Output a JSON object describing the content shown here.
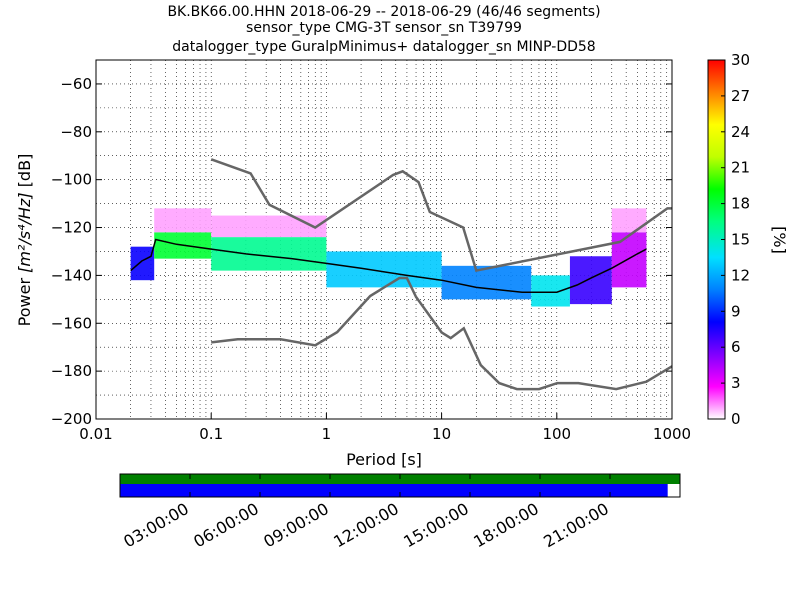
{
  "chart_data": {
    "type": "heatmap",
    "title_lines": [
      "BK.BK66.00.HHN   2018-06-29 -- 2018-06-29  (46/46 segments)",
      "sensor_type CMG-3T sensor_sn T39799",
      "datalogger_type GuralpMinimus+ datalogger_sn MINP-DD58"
    ],
    "xlabel": "Period [s]",
    "ylabel_prefix": "Power ",
    "ylabel_units": "[m²/s⁴/Hz]",
    "ylabel_suffix": " [dB]",
    "x_scale": "log",
    "xlim": [
      0.01,
      1000
    ],
    "ylim": [
      -200,
      -50
    ],
    "x_ticks": [
      {
        "value": 0.01,
        "label": "0.01"
      },
      {
        "value": 0.1,
        "label": "0.1"
      },
      {
        "value": 1,
        "label": "1"
      },
      {
        "value": 10,
        "label": "10"
      },
      {
        "value": 100,
        "label": "100"
      },
      {
        "value": 1000,
        "label": "1000"
      }
    ],
    "y_ticks": [
      {
        "value": -60,
        "label": "−60"
      },
      {
        "value": -80,
        "label": "−80"
      },
      {
        "value": -100,
        "label": "−100"
      },
      {
        "value": -120,
        "label": "−120"
      },
      {
        "value": -140,
        "label": "−140"
      },
      {
        "value": -160,
        "label": "−160"
      },
      {
        "value": -180,
        "label": "−180"
      },
      {
        "value": -200,
        "label": "−200"
      }
    ],
    "grid": "dotted",
    "colorbar": {
      "label": "[%]",
      "range": [
        0,
        30
      ],
      "ticks": [
        {
          "value": 0,
          "label": "0"
        },
        {
          "value": 3,
          "label": "3"
        },
        {
          "value": 6,
          "label": "6"
        },
        {
          "value": 9,
          "label": "9"
        },
        {
          "value": 12,
          "label": "12"
        },
        {
          "value": 15,
          "label": "15"
        },
        {
          "value": 18,
          "label": "18"
        },
        {
          "value": 21,
          "label": "21"
        },
        {
          "value": 24,
          "label": "24"
        },
        {
          "value": 27,
          "label": "27"
        },
        {
          "value": 30,
          "label": "30"
        }
      ],
      "colormap_stops": [
        "#ffffff",
        "#ff00ff",
        "#8000ff",
        "#0000ff",
        "#0080ff",
        "#00e0ff",
        "#00ff80",
        "#00ff00",
        "#c0ff00",
        "#ffff00",
        "#ff8000",
        "#ff0000"
      ]
    },
    "high_noise_model": [
      [
        0.1,
        -91.5
      ],
      [
        0.22,
        -97.4
      ],
      [
        0.32,
        -110.5
      ],
      [
        0.8,
        -120
      ],
      [
        3.8,
        -98
      ],
      [
        4.6,
        -96.5
      ],
      [
        6.3,
        -101
      ],
      [
        7.9,
        -113.5
      ],
      [
        15.4,
        -120
      ],
      [
        20,
        -138
      ],
      [
        354,
        -126
      ],
      [
        912,
        -112
      ],
      [
        1000,
        -112
      ]
    ],
    "low_noise_model": [
      [
        0.1,
        -168
      ],
      [
        0.17,
        -166.7
      ],
      [
        0.4,
        -166.7
      ],
      [
        0.8,
        -169.2
      ],
      [
        1.24,
        -163.7
      ],
      [
        2.4,
        -148.6
      ],
      [
        4.3,
        -141.1
      ],
      [
        5.0,
        -141.1
      ],
      [
        6.0,
        -149
      ],
      [
        10.0,
        -163.8
      ],
      [
        12.0,
        -166.2
      ],
      [
        15.6,
        -162.1
      ],
      [
        21.9,
        -177.5
      ],
      [
        31.6,
        -185
      ],
      [
        45,
        -187.5
      ],
      [
        70,
        -187.5
      ],
      [
        101,
        -185
      ],
      [
        154,
        -185
      ],
      [
        328,
        -187.5
      ],
      [
        600,
        -184.4
      ],
      [
        1000,
        -178
      ]
    ],
    "mode_curve": [
      [
        0.02,
        -138
      ],
      [
        0.025,
        -134
      ],
      [
        0.03,
        -132
      ],
      [
        0.033,
        -125
      ],
      [
        0.05,
        -127
      ],
      [
        0.1,
        -129
      ],
      [
        0.2,
        -131
      ],
      [
        0.5,
        -133
      ],
      [
        1,
        -135
      ],
      [
        2,
        -137
      ],
      [
        5,
        -140
      ],
      [
        10,
        -142
      ],
      [
        20,
        -145
      ],
      [
        50,
        -147
      ],
      [
        100,
        -147
      ],
      [
        150,
        -144
      ],
      [
        200,
        -141
      ],
      [
        300,
        -137
      ],
      [
        500,
        -131
      ],
      [
        600,
        -129
      ]
    ],
    "distribution_bands": [
      {
        "x": [
          0.02,
          0.032
        ],
        "y": [
          -142,
          -128
        ],
        "pct": 8
      },
      {
        "x": [
          0.032,
          0.1
        ],
        "y": [
          -133,
          -122
        ],
        "pct": 18
      },
      {
        "x": [
          0.032,
          0.1
        ],
        "y": [
          -122,
          -112
        ],
        "pct": 1
      },
      {
        "x": [
          0.1,
          1
        ],
        "y": [
          -138,
          -124
        ],
        "pct": 16
      },
      {
        "x": [
          0.1,
          1
        ],
        "y": [
          -124,
          -115
        ],
        "pct": 1
      },
      {
        "x": [
          1,
          10
        ],
        "y": [
          -145,
          -130
        ],
        "pct": 13
      },
      {
        "x": [
          10,
          60
        ],
        "y": [
          -150,
          -136
        ],
        "pct": 11
      },
      {
        "x": [
          60,
          130
        ],
        "y": [
          -153,
          -140
        ],
        "pct": 14
      },
      {
        "x": [
          130,
          300
        ],
        "y": [
          -152,
          -132
        ],
        "pct": 7
      },
      {
        "x": [
          300,
          600
        ],
        "y": [
          -145,
          -122
        ],
        "pct": 4
      },
      {
        "x": [
          300,
          600
        ],
        "y": [
          -122,
          -112
        ],
        "pct": 1
      }
    ],
    "time_axis": {
      "ticks": [
        "03:00:00",
        "06:00:00",
        "09:00:00",
        "12:00:00",
        "15:00:00",
        "18:00:00",
        "21:00:00"
      ],
      "data_coverage": [
        0,
        1
      ],
      "psd_coverage": [
        0,
        0.978
      ]
    }
  },
  "colors": {
    "noise_model": "#666666",
    "mode_curve": "#000000",
    "data_bar": "#008000",
    "psd_bar": "#0000ff"
  }
}
